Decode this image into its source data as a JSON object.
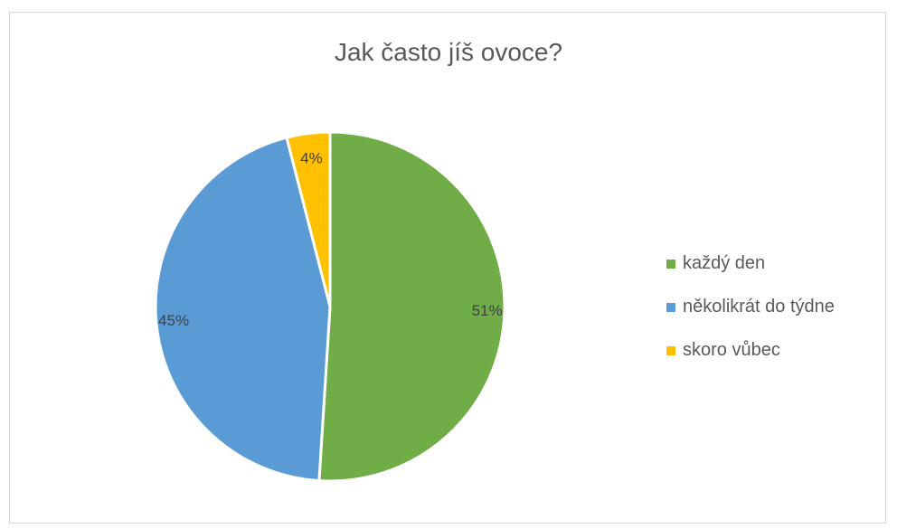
{
  "chart_data": {
    "type": "pie",
    "title": "Jak často jíš ovoce?",
    "categories": [
      "každý den",
      "několikrát do týdne",
      "skoro vůbec"
    ],
    "values": [
      51,
      45,
      4
    ],
    "data_labels": [
      "51%",
      "45%",
      "4%"
    ],
    "colors": [
      "#70ad47",
      "#5b9bd5",
      "#ffc000"
    ],
    "legend_position": "right"
  }
}
